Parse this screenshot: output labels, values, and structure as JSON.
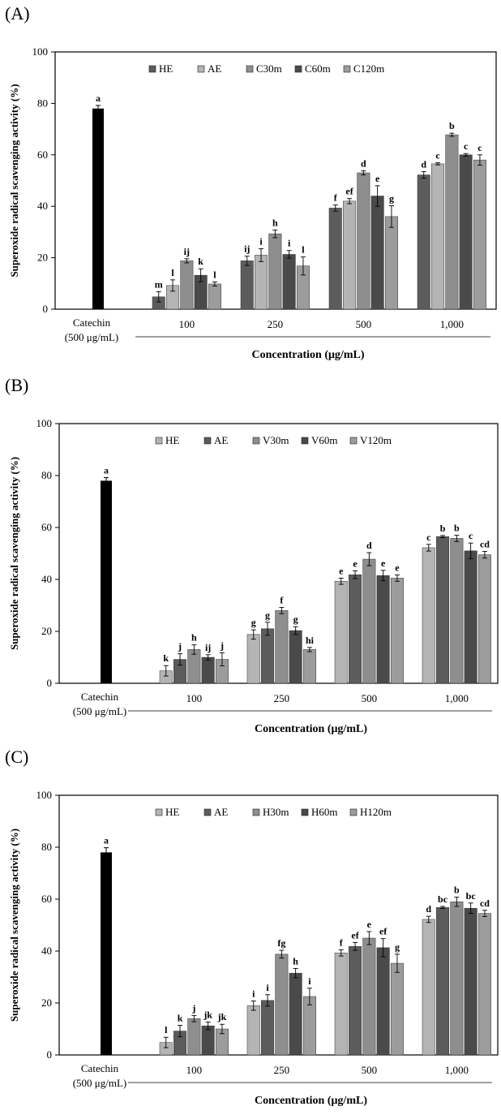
{
  "chart_data": [
    {
      "type": "bar",
      "panel_label": "(A)",
      "ylabel": "Superoxide radical scavenging activity (%)",
      "xlabel": "Concentration (μg/mL)",
      "ylim": [
        0,
        100
      ],
      "yticks": [
        "0",
        "20",
        "40",
        "60",
        "80",
        "100"
      ],
      "grid": false,
      "legend_position": "top",
      "control": {
        "label_line1": "Catechin",
        "label_line2": "(500 μg/mL)",
        "value": 78,
        "error": 1.2,
        "letter": "a",
        "color": "#000000"
      },
      "categories": [
        "100",
        "250",
        "500",
        "1,000"
      ],
      "series": [
        {
          "name": "HE",
          "color": "#5c5c5c",
          "values": [
            4.8,
            18.8,
            39.3,
            52.2
          ],
          "errors": [
            2.0,
            1.8,
            1.2,
            1.3
          ],
          "letters": [
            "m",
            "ij",
            "f",
            "d"
          ]
        },
        {
          "name": "AE",
          "color": "#b4b4b4",
          "values": [
            9.2,
            21.0,
            42.0,
            56.5
          ],
          "errors": [
            2.2,
            2.5,
            1.0,
            0.4
          ],
          "letters": [
            "l",
            "i",
            "ef",
            "c"
          ]
        },
        {
          "name": "C30m",
          "color": "#8e8e8e",
          "values": [
            18.8,
            29.3,
            53.0,
            67.8
          ],
          "errors": [
            0.8,
            1.5,
            0.8,
            0.6
          ],
          "letters": [
            "ij",
            "h",
            "d",
            "b"
          ]
        },
        {
          "name": "C60m",
          "color": "#4a4a4a",
          "values": [
            13.2,
            21.3,
            44.0,
            60.0
          ],
          "errors": [
            2.5,
            1.5,
            4.0,
            0.5
          ],
          "letters": [
            "k",
            "i",
            "e",
            "c"
          ]
        },
        {
          "name": "C120m",
          "color": "#9c9c9c",
          "values": [
            9.8,
            16.8,
            36.0,
            58.0
          ],
          "errors": [
            0.8,
            3.5,
            4.2,
            2.0
          ],
          "letters": [
            "l",
            "l",
            "g",
            "c"
          ]
        }
      ]
    },
    {
      "type": "bar",
      "panel_label": "(B)",
      "ylabel": "Superoxide radical scavenging activity (%)",
      "xlabel": "Concentration (μg/mL)",
      "ylim": [
        0,
        100
      ],
      "yticks": [
        "0",
        "20",
        "40",
        "60",
        "80",
        "100"
      ],
      "grid": false,
      "legend_position": "top",
      "control": {
        "label_line1": "Catechin",
        "label_line2": "(500 μg/mL)",
        "value": 78,
        "error": 1.2,
        "letter": "a",
        "color": "#000000"
      },
      "categories": [
        "100",
        "250",
        "500",
        "1,000"
      ],
      "series": [
        {
          "name": "HE",
          "color": "#b4b4b4",
          "values": [
            4.8,
            18.8,
            39.3,
            52.2
          ],
          "errors": [
            2.0,
            1.8,
            1.2,
            1.3
          ],
          "letters": [
            "k",
            "g",
            "e",
            "c"
          ]
        },
        {
          "name": "AE",
          "color": "#5c5c5c",
          "values": [
            9.2,
            21.0,
            41.8,
            56.5
          ],
          "errors": [
            2.2,
            2.5,
            1.5,
            0.4
          ],
          "letters": [
            "j",
            "g",
            "e",
            "b"
          ]
        },
        {
          "name": "V30m",
          "color": "#8e8e8e",
          "values": [
            13.0,
            28.0,
            47.8,
            55.8
          ],
          "errors": [
            1.8,
            1.2,
            2.5,
            1.2
          ],
          "letters": [
            "h",
            "f",
            "d",
            "b"
          ]
        },
        {
          "name": "V60m",
          "color": "#4a4a4a",
          "values": [
            10.0,
            20.3,
            41.5,
            51.0
          ],
          "errors": [
            1.0,
            1.5,
            2.0,
            3.0
          ],
          "letters": [
            "ij",
            "g",
            "e",
            "c"
          ]
        },
        {
          "name": "V120m",
          "color": "#9c9c9c",
          "values": [
            9.2,
            13.0,
            40.5,
            49.5
          ],
          "errors": [
            2.5,
            0.8,
            1.2,
            1.3
          ],
          "letters": [
            "j",
            "hi",
            "e",
            "cd"
          ]
        }
      ]
    },
    {
      "type": "bar",
      "panel_label": "(C)",
      "ylabel": "Superoxide radical scavenging activity (%)",
      "xlabel": "Concentration (μg/mL)",
      "ylim": [
        0,
        100
      ],
      "yticks": [
        "0",
        "20",
        "40",
        "60",
        "80",
        "100"
      ],
      "grid": false,
      "legend_position": "top",
      "control": {
        "label_line1": "Catechin",
        "label_line2": "(500 μg/mL)",
        "value": 78,
        "error": 1.8,
        "letter": "a",
        "color": "#000000"
      },
      "categories": [
        "100",
        "250",
        "500",
        "1,000"
      ],
      "series": [
        {
          "name": "HE",
          "color": "#b4b4b4",
          "values": [
            4.8,
            19.0,
            39.3,
            52.2
          ],
          "errors": [
            2.0,
            1.8,
            1.2,
            1.2
          ],
          "letters": [
            "l",
            "i",
            "f",
            "d"
          ]
        },
        {
          "name": "AE",
          "color": "#5c5c5c",
          "values": [
            9.2,
            21.0,
            41.8,
            56.8
          ],
          "errors": [
            2.2,
            2.2,
            1.5,
            0.4
          ],
          "letters": [
            "k",
            "i",
            "ef",
            "bc"
          ]
        },
        {
          "name": "H30m",
          "color": "#8e8e8e",
          "values": [
            14.0,
            38.8,
            45.0,
            59.0
          ],
          "errors": [
            1.2,
            1.5,
            2.5,
            1.8
          ],
          "letters": [
            "j",
            "fg",
            "e",
            "b"
          ]
        },
        {
          "name": "H60m",
          "color": "#4a4a4a",
          "values": [
            11.2,
            31.5,
            41.3,
            56.5
          ],
          "errors": [
            1.5,
            1.8,
            3.5,
            2.0
          ],
          "letters": [
            "jk",
            "h",
            "ef",
            "bc"
          ]
        },
        {
          "name": "H120m",
          "color": "#9c9c9c",
          "values": [
            10.0,
            22.5,
            35.3,
            54.5
          ],
          "errors": [
            1.8,
            3.2,
            3.5,
            1.2
          ],
          "letters": [
            "jk",
            "i",
            "g",
            "cd"
          ]
        }
      ]
    }
  ]
}
